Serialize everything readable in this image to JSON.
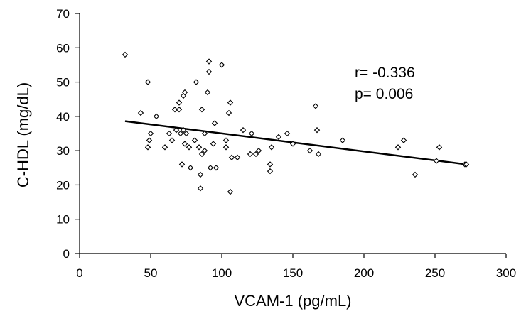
{
  "chart_data": {
    "type": "scatter",
    "xlabel": "VCAM-1 (pg/mL)",
    "ylabel": "C-HDL (mg/dL)",
    "xlim": [
      0,
      300
    ],
    "ylim": [
      0,
      70
    ],
    "x_ticks": [
      0,
      50,
      100,
      150,
      200,
      250,
      300
    ],
    "y_ticks": [
      0,
      10,
      20,
      30,
      40,
      50,
      60,
      70
    ],
    "grid": false,
    "legend": "none",
    "marker": "open-diamond",
    "annotations": [
      "r= -0.336",
      "p= 0.006"
    ],
    "trendline": {
      "x": [
        32,
        272
      ],
      "y": [
        38.6,
        26.0
      ]
    },
    "series": [
      {
        "points": [
          [
            32,
            58
          ],
          [
            43,
            41
          ],
          [
            48,
            50
          ],
          [
            48,
            31
          ],
          [
            49,
            33
          ],
          [
            50,
            35
          ],
          [
            54,
            40
          ],
          [
            60,
            31
          ],
          [
            63,
            35
          ],
          [
            65,
            33
          ],
          [
            67,
            42
          ],
          [
            68,
            36
          ],
          [
            70,
            44
          ],
          [
            70,
            42
          ],
          [
            71,
            35
          ],
          [
            72,
            26
          ],
          [
            73,
            46
          ],
          [
            73,
            36
          ],
          [
            74,
            47
          ],
          [
            74,
            32
          ],
          [
            75,
            35
          ],
          [
            77,
            31
          ],
          [
            78,
            25
          ],
          [
            81,
            33
          ],
          [
            82,
            50
          ],
          [
            84,
            31
          ],
          [
            85,
            19
          ],
          [
            85,
            23
          ],
          [
            86,
            29
          ],
          [
            86,
            42
          ],
          [
            88,
            30
          ],
          [
            88,
            35
          ],
          [
            90,
            47
          ],
          [
            91,
            53
          ],
          [
            91,
            56
          ],
          [
            92,
            25
          ],
          [
            94,
            32
          ],
          [
            95,
            38
          ],
          [
            96,
            25
          ],
          [
            100,
            55
          ],
          [
            103,
            31
          ],
          [
            103,
            33
          ],
          [
            105,
            41
          ],
          [
            106,
            44
          ],
          [
            106,
            18
          ],
          [
            107,
            28
          ],
          [
            111,
            28
          ],
          [
            115,
            36
          ],
          [
            120,
            29
          ],
          [
            121,
            35
          ],
          [
            124,
            29
          ],
          [
            126,
            30
          ],
          [
            134,
            26
          ],
          [
            134,
            24
          ],
          [
            135,
            31
          ],
          [
            140,
            34
          ],
          [
            146,
            35
          ],
          [
            150,
            32
          ],
          [
            162,
            30
          ],
          [
            166,
            43
          ],
          [
            167,
            36
          ],
          [
            168,
            29
          ],
          [
            185,
            33
          ],
          [
            224,
            31
          ],
          [
            228,
            33
          ],
          [
            236,
            23
          ],
          [
            251,
            27
          ],
          [
            253,
            31
          ],
          [
            271,
            26
          ],
          [
            272,
            26
          ]
        ]
      }
    ]
  }
}
